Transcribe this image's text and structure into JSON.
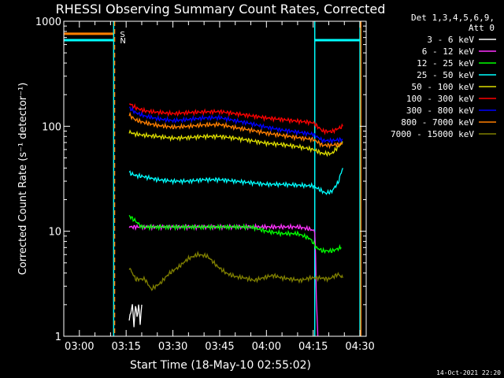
{
  "chart_data": {
    "type": "line",
    "title": "RHESSI Observing Summary Count Rates, Corrected",
    "xlabel": "Start Time (18-May-10 02:55:02)",
    "ylabel": "Corrected Count Rate (s⁻¹ detector⁻¹)",
    "y_scale": "log",
    "ylim": [
      1,
      1000
    ],
    "x_unit": "minutes after 02:55:02",
    "xlim": [
      0,
      97
    ],
    "x_ticks": [
      {
        "t": 5,
        "label": "03:00"
      },
      {
        "t": 20,
        "label": "03:15"
      },
      {
        "t": 35,
        "label": "03:30"
      },
      {
        "t": 50,
        "label": "03:45"
      },
      {
        "t": 65,
        "label": "04:00"
      },
      {
        "t": 80,
        "label": "04:15"
      },
      {
        "t": 95,
        "label": "04:30"
      }
    ],
    "y_ticks": [
      {
        "v": 1,
        "label": "1"
      },
      {
        "v": 10,
        "label": "10"
      },
      {
        "v": 100,
        "label": "100"
      },
      {
        "v": 1000,
        "label": "1000"
      }
    ],
    "legend_header": [
      "Det 1,3,4,5,6,9,",
      "Att 0"
    ],
    "legend_position": "top-right",
    "series": [
      {
        "name": "3 - 6 keV",
        "color": "#ffffff",
        "x": [
          21.0,
          22.0,
          22.5,
          23.0,
          23.5,
          24.0,
          24.5,
          25.0
        ],
        "y": [
          1.4,
          2.0,
          1.2,
          2.0,
          1.5,
          2.0,
          1.3,
          2.0
        ]
      },
      {
        "name": "6 - 12 keV",
        "color": "#ff33ff",
        "x": [
          21,
          25,
          30,
          35,
          40,
          45,
          50,
          55,
          60,
          65,
          70,
          75,
          79,
          80.5,
          81,
          81.5
        ],
        "y": [
          11,
          11,
          11,
          11,
          11,
          11,
          11,
          11,
          11,
          11,
          11,
          11,
          10.5,
          10,
          2.2,
          1
        ]
      },
      {
        "name": "12 - 25 keV",
        "color": "#00ff00",
        "x": [
          21,
          25,
          30,
          35,
          40,
          45,
          50,
          55,
          60,
          65,
          70,
          75,
          79,
          81,
          83,
          86,
          89
        ],
        "y": [
          14,
          11,
          11,
          11,
          11,
          11,
          11,
          11,
          11,
          10,
          9.5,
          9.5,
          8.5,
          7,
          6.5,
          6.5,
          7
        ]
      },
      {
        "name": "25 - 50 keV",
        "color": "#00ffff",
        "x": [
          21,
          23,
          26,
          30,
          35,
          40,
          45,
          50,
          55,
          60,
          65,
          70,
          75,
          80,
          84,
          86,
          88,
          89.5
        ],
        "y": [
          36,
          34,
          33,
          31,
          30,
          30,
          31,
          31,
          30,
          29,
          28,
          28,
          27.5,
          27,
          23,
          24,
          29,
          40
        ]
      },
      {
        "name": "50 - 100 keV",
        "color": "#dddd00",
        "x": [
          21,
          23,
          26,
          30,
          35,
          40,
          45,
          50,
          55,
          60,
          65,
          70,
          75,
          80,
          83,
          86,
          89.5
        ],
        "y": [
          88,
          84,
          82,
          80,
          77,
          78,
          80,
          80,
          77,
          73,
          69,
          67,
          64,
          60,
          55,
          55,
          70
        ]
      },
      {
        "name": "100 - 300 keV",
        "color": "#ff0000",
        "x": [
          21,
          23,
          26,
          30,
          35,
          40,
          45,
          50,
          55,
          60,
          65,
          70,
          75,
          80,
          83,
          86,
          89.5
        ],
        "y": [
          165,
          150,
          140,
          136,
          132,
          135,
          137,
          138,
          132,
          126,
          120,
          116,
          112,
          108,
          90,
          89,
          100
        ]
      },
      {
        "name": "300 - 800 keV",
        "color": "#0000ff",
        "x": [
          21,
          23,
          26,
          30,
          35,
          40,
          45,
          50,
          55,
          60,
          65,
          70,
          75,
          80,
          83,
          86,
          89.5
        ],
        "y": [
          150,
          135,
          125,
          118,
          113,
          116,
          120,
          121,
          113,
          106,
          98,
          92,
          88,
          84,
          73,
          73,
          75
        ]
      },
      {
        "name": "800 - 7000 keV",
        "color": "#ff7f00",
        "x": [
          21,
          23,
          26,
          30,
          35,
          40,
          45,
          50,
          55,
          60,
          65,
          70,
          75,
          80,
          83,
          86,
          89.5
        ],
        "y": [
          128,
          115,
          108,
          102,
          98,
          100,
          103,
          104,
          97,
          92,
          86,
          82,
          78,
          75,
          66,
          66,
          68
        ]
      },
      {
        "name": "7000 - 15000 keV",
        "color": "#808000",
        "x": [
          21,
          23,
          26,
          28,
          31,
          34,
          37,
          40,
          43,
          46,
          49,
          52,
          55,
          58,
          61,
          64,
          67,
          70,
          73,
          76,
          79,
          82,
          85,
          88,
          89.5
        ],
        "y": [
          4.5,
          3.5,
          3.5,
          2.8,
          3.2,
          4.0,
          4.6,
          5.5,
          6.0,
          5.8,
          4.7,
          4.0,
          3.7,
          3.6,
          3.4,
          3.6,
          3.8,
          3.6,
          3.5,
          3.4,
          3.6,
          3.6,
          3.5,
          3.9,
          3.6
        ]
      }
    ],
    "flags": [
      {
        "letter": "S",
        "color": "#ff7f00",
        "level": 760,
        "segments": [
          [
            0,
            16
          ]
        ]
      },
      {
        "letter": "N",
        "color": "#00ffff",
        "level": 660,
        "segments": [
          [
            0,
            16
          ],
          [
            80.5,
            95
          ]
        ]
      }
    ],
    "vertical_markers": [
      {
        "t": 16,
        "color": "#00ffff",
        "style": "solid"
      },
      {
        "t": 16.3,
        "color": "#ff7f00",
        "style": "dashed"
      },
      {
        "t": 80.5,
        "color": "#00ffff",
        "style": "solid"
      },
      {
        "t": 95,
        "color": "#00ffff",
        "style": "solid"
      },
      {
        "t": 95.3,
        "color": "#ff7f00",
        "style": "solid"
      }
    ]
  },
  "footer": {
    "timestamp": "14-Oct-2021 22:20"
  }
}
